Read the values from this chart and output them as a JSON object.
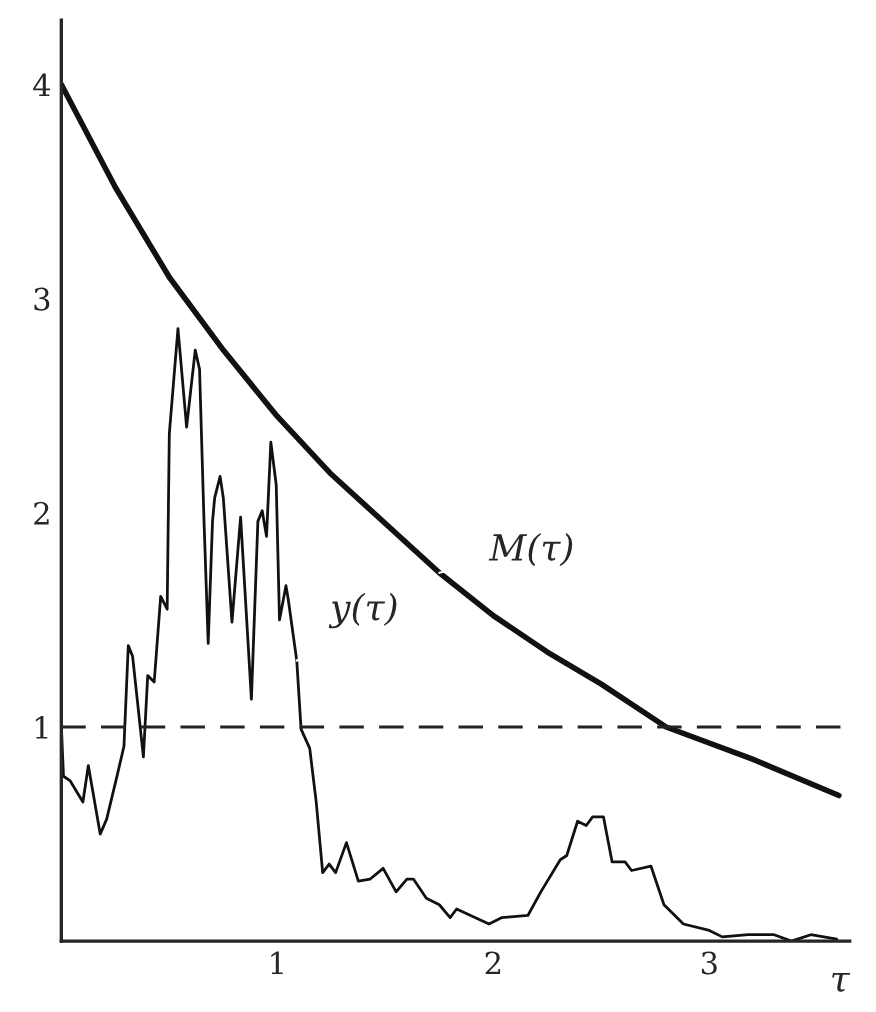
{
  "chart_data": {
    "type": "line",
    "xlabel": "τ",
    "xlim": [
      0,
      3.65
    ],
    "ylim": [
      0,
      4.3
    ],
    "xticks": [
      1,
      2,
      3
    ],
    "yticks": [
      1,
      2,
      3,
      4
    ],
    "grid": false,
    "legend": false,
    "marker": "none",
    "series": [
      {
        "name": "M(τ)",
        "color": "#111111",
        "x": [
          0,
          0.25,
          0.5,
          0.75,
          1,
          1.25,
          1.5,
          1.75,
          2,
          2.25,
          2.5,
          2.8,
          3.2,
          3.6
        ],
        "values": [
          4.0,
          3.52,
          3.1,
          2.76,
          2.45,
          2.18,
          1.95,
          1.72,
          1.52,
          1.35,
          1.2,
          1.0,
          0.85,
          0.68
        ]
      },
      {
        "name": "y(τ)",
        "color": "#111111",
        "x": [
          0,
          0.01,
          0.04,
          0.1,
          0.125,
          0.18,
          0.21,
          0.26,
          0.29,
          0.31,
          0.33,
          0.38,
          0.4,
          0.43,
          0.46,
          0.49,
          0.5,
          0.54,
          0.58,
          0.62,
          0.64,
          0.66,
          0.68,
          0.7,
          0.71,
          0.735,
          0.75,
          0.79,
          0.83,
          0.88,
          0.91,
          0.93,
          0.95,
          0.97,
          0.995,
          1.01,
          1.04,
          1.05,
          1.09,
          1.11,
          1.15,
          1.18,
          1.21,
          1.24,
          1.27,
          1.32,
          1.375,
          1.43,
          1.49,
          1.55,
          1.6,
          1.63,
          1.69,
          1.75,
          1.8,
          1.83,
          1.98,
          2.04,
          2.16,
          2.22,
          2.31,
          2.34,
          2.39,
          2.43,
          2.46,
          2.51,
          2.55,
          2.61,
          2.64,
          2.73,
          2.79,
          2.88,
          3.0,
          3.06,
          3.18,
          3.3,
          3.38,
          3.47,
          3.53,
          3.59
        ],
        "values": [
          1.01,
          0.77,
          0.75,
          0.65,
          0.82,
          0.5,
          0.57,
          0.78,
          0.91,
          1.38,
          1.33,
          0.86,
          1.24,
          1.21,
          1.61,
          1.55,
          2.37,
          2.86,
          2.4,
          2.76,
          2.67,
          1.98,
          1.39,
          1.96,
          2.07,
          2.17,
          2.07,
          1.49,
          1.98,
          1.13,
          1.96,
          2.01,
          1.89,
          2.33,
          2.13,
          1.5,
          1.66,
          1.6,
          1.31,
          0.99,
          0.9,
          0.65,
          0.32,
          0.36,
          0.32,
          0.46,
          0.28,
          0.29,
          0.34,
          0.23,
          0.29,
          0.29,
          0.2,
          0.17,
          0.11,
          0.15,
          0.08,
          0.11,
          0.12,
          0.23,
          0.38,
          0.4,
          0.56,
          0.54,
          0.58,
          0.58,
          0.37,
          0.37,
          0.33,
          0.35,
          0.17,
          0.08,
          0.05,
          0.02,
          0.03,
          0.03,
          0.0,
          0.03,
          0.02,
          0.01
        ]
      }
    ],
    "ref_lines": [
      {
        "axis": "y",
        "value": 1,
        "line_style": "dashed",
        "color": "#222222"
      }
    ]
  }
}
